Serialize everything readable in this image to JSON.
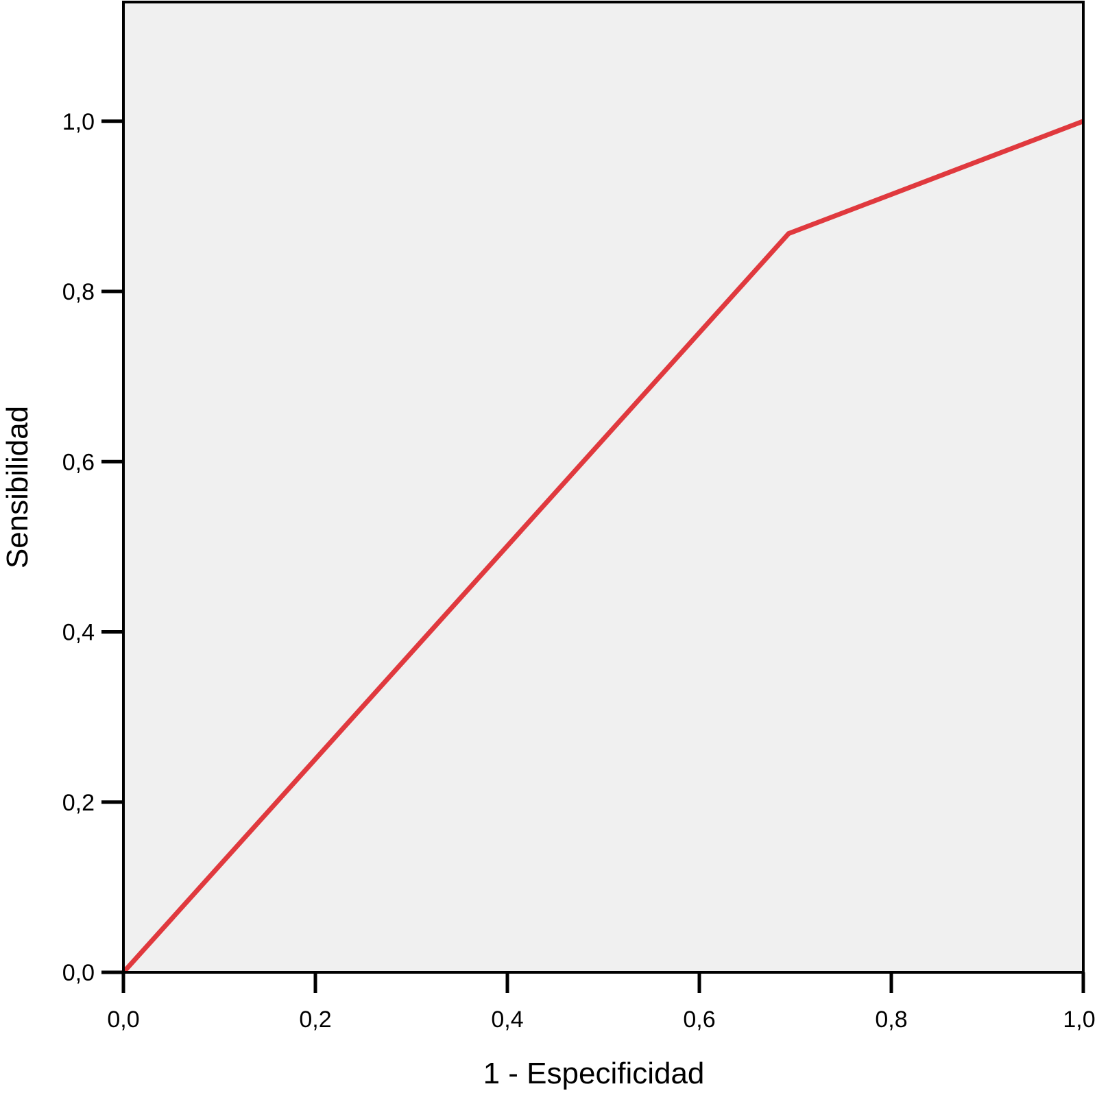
{
  "chart_data": {
    "type": "line",
    "title": "",
    "xlabel": "1 - Especificidad",
    "ylabel": "Sensibilidad",
    "xlim": [
      0,
      1
    ],
    "ylim": [
      0,
      1.14
    ],
    "x_ticks": [
      "0,0",
      "0,2",
      "0,4",
      "0,6",
      "0,8",
      "1,0"
    ],
    "y_ticks": [
      "0,0",
      "0,2",
      "0,4",
      "0,6",
      "0,8",
      "1,0"
    ],
    "grid": false,
    "legend": "none",
    "series": [
      {
        "color": "#e0393e",
        "x": [
          0.0,
          0.693,
          1.0
        ],
        "y": [
          0.0,
          0.868,
          1.0
        ]
      }
    ],
    "colors": {
      "plot_background": "#f0f0f0",
      "axis": "#000000"
    }
  }
}
